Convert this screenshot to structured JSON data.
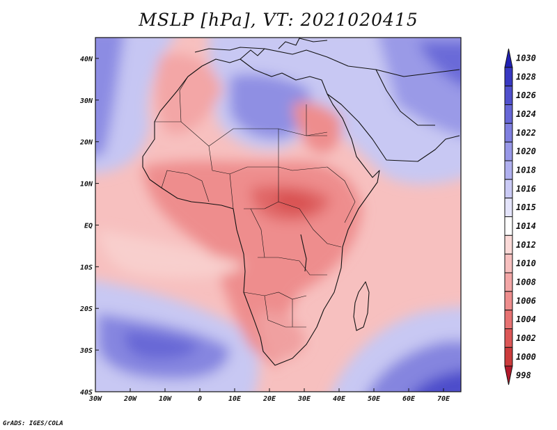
{
  "title": "MSLP [hPa], VT: 2021020415",
  "credit": "GrADS: IGES/COLA",
  "map": {
    "lon_range": [
      -30,
      75
    ],
    "lat_range": [
      -40,
      45
    ],
    "x_ticks": [
      {
        "lon": -30,
        "label": "30W"
      },
      {
        "lon": -20,
        "label": "20W"
      },
      {
        "lon": -10,
        "label": "10W"
      },
      {
        "lon": 0,
        "label": "0"
      },
      {
        "lon": 10,
        "label": "10E"
      },
      {
        "lon": 20,
        "label": "20E"
      },
      {
        "lon": 30,
        "label": "30E"
      },
      {
        "lon": 40,
        "label": "40E"
      },
      {
        "lon": 50,
        "label": "50E"
      },
      {
        "lon": 60,
        "label": "60E"
      },
      {
        "lon": 70,
        "label": "70E"
      }
    ],
    "y_ticks": [
      {
        "lat": 40,
        "label": "40N"
      },
      {
        "lat": 30,
        "label": "30N"
      },
      {
        "lat": 20,
        "label": "20N"
      },
      {
        "lat": 10,
        "label": "10N"
      },
      {
        "lat": 0,
        "label": "EQ"
      },
      {
        "lat": -10,
        "label": "10S"
      },
      {
        "lat": -20,
        "label": "20S"
      },
      {
        "lat": -30,
        "label": "30S"
      },
      {
        "lat": -40,
        "label": "40S"
      }
    ]
  },
  "colorbar": {
    "levels": [
      "998",
      "1000",
      "1002",
      "1004",
      "1006",
      "1008",
      "1010",
      "1012",
      "1014",
      "1015",
      "1016",
      "1018",
      "1020",
      "1022",
      "1024",
      "1026",
      "1028",
      "1030"
    ],
    "colors": [
      "#b2182b",
      "#cc3b3c",
      "#dc5656",
      "#e77272",
      "#ee8d8d",
      "#f3a6a6",
      "#f7c0bf",
      "#fbdad8",
      "#ffffff",
      "#e4e4fb",
      "#cacaf5",
      "#b0b0ef",
      "#9898e8",
      "#7f7fe0",
      "#6767d7",
      "#5050cd",
      "#3838c2",
      "#2020b3"
    ]
  }
}
